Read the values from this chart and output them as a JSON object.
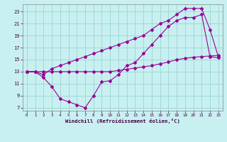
{
  "line1_x": [
    0,
    1,
    2,
    3,
    4,
    5,
    6,
    7,
    8,
    9,
    10,
    11,
    12,
    13,
    14,
    15,
    16,
    17,
    18,
    19,
    20,
    21,
    22,
    23
  ],
  "line1_y": [
    13,
    13,
    13,
    13,
    13,
    13,
    13,
    13,
    13,
    13,
    13,
    13.2,
    13.4,
    13.6,
    13.8,
    14.0,
    14.3,
    14.6,
    15.0,
    15.2,
    15.4,
    15.5,
    15.6,
    15.7
  ],
  "line2_x": [
    0,
    1,
    2,
    3,
    4,
    5,
    6,
    7,
    8,
    9,
    10,
    11,
    12,
    13,
    14,
    15,
    16,
    17,
    18,
    19,
    20,
    21,
    22,
    23
  ],
  "line2_y": [
    13,
    13,
    12.0,
    10.5,
    8.5,
    8.0,
    7.5,
    7.0,
    9.0,
    11.3,
    11.5,
    12.5,
    14.0,
    14.5,
    16.0,
    17.5,
    19.0,
    20.5,
    21.5,
    22.0,
    22.0,
    22.5,
    15.5,
    15.3
  ],
  "line3_x": [
    0,
    1,
    2,
    3,
    4,
    5,
    6,
    7,
    8,
    9,
    10,
    11,
    12,
    13,
    14,
    15,
    16,
    17,
    18,
    19,
    20,
    21,
    22,
    23
  ],
  "line3_y": [
    13,
    13,
    12.5,
    13.5,
    14.0,
    14.5,
    15.0,
    15.5,
    16.0,
    16.5,
    17.0,
    17.5,
    18.0,
    18.5,
    19.0,
    20.0,
    21.0,
    21.5,
    22.5,
    23.5,
    23.5,
    23.5,
    20.0,
    15.5
  ],
  "color": "#990099",
  "bg_color": "#c8f0f0",
  "grid_color": "#a0d8d8",
  "xlabel": "Windchill (Refroidissement éolien,°C)",
  "xlim": [
    -0.5,
    23.5
  ],
  "ylim": [
    6.5,
    24.2
  ],
  "yticks": [
    7,
    9,
    11,
    13,
    15,
    17,
    19,
    21,
    23
  ],
  "xticks": [
    0,
    1,
    2,
    3,
    4,
    5,
    6,
    7,
    8,
    9,
    10,
    11,
    12,
    13,
    14,
    15,
    16,
    17,
    18,
    19,
    20,
    21,
    22,
    23
  ]
}
